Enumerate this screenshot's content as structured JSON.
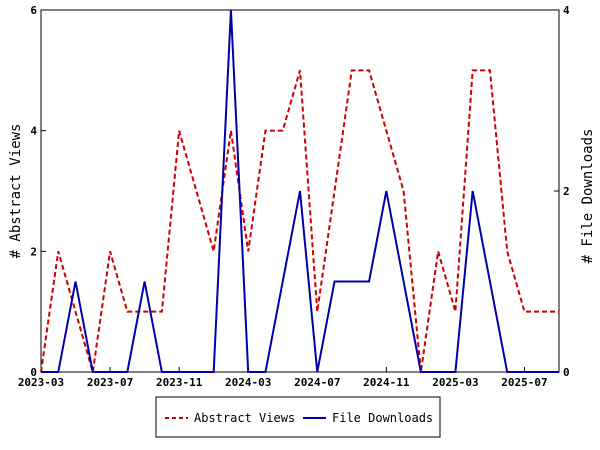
{
  "chart_data": {
    "type": "line",
    "x": [
      "2023-03",
      "2023-04",
      "2023-05",
      "2023-06",
      "2023-07",
      "2023-08",
      "2023-09",
      "2023-10",
      "2023-11",
      "2023-12",
      "2024-01",
      "2024-02",
      "2024-03",
      "2024-04",
      "2024-05",
      "2024-06",
      "2024-07",
      "2024-08",
      "2024-09",
      "2024-10",
      "2024-11",
      "2024-12",
      "2025-01",
      "2025-02",
      "2025-03",
      "2025-04",
      "2025-05",
      "2025-06",
      "2025-07",
      "2025-08",
      "2025-09"
    ],
    "series": [
      {
        "name": "Abstract Views",
        "axis": "left",
        "color": "#cc0000",
        "style": "dashed",
        "values": [
          0,
          2,
          1,
          0,
          2,
          1,
          1,
          1,
          4,
          3,
          2,
          4,
          2,
          4,
          4,
          5,
          1,
          3,
          5,
          5,
          4,
          3,
          0,
          2,
          1,
          5,
          5,
          2,
          1,
          1,
          1
        ]
      },
      {
        "name": "File Downloads",
        "axis": "right",
        "color": "#0000aa",
        "style": "solid",
        "values": [
          0,
          0,
          1,
          0,
          0,
          0,
          1,
          0,
          0,
          0,
          0,
          4,
          0,
          0,
          1,
          2,
          0,
          1,
          1,
          1,
          2,
          1,
          0,
          0,
          0,
          2,
          1,
          0,
          0,
          0,
          0
        ]
      }
    ],
    "x_tick_labels": [
      "2023-03",
      "2023-07",
      "2023-11",
      "2024-03",
      "2024-07",
      "2024-11",
      "2025-03",
      "2025-07"
    ],
    "ylabel": "# Abstract Views",
    "y2label": "# File Downloads",
    "ylim": [
      0,
      6
    ],
    "y2lim": [
      0,
      4
    ],
    "y_ticks": [
      "0",
      "2",
      "4",
      "6"
    ],
    "y2_ticks": [
      "0",
      "2",
      "4"
    ],
    "grid": false,
    "legend_position": "bottom"
  }
}
